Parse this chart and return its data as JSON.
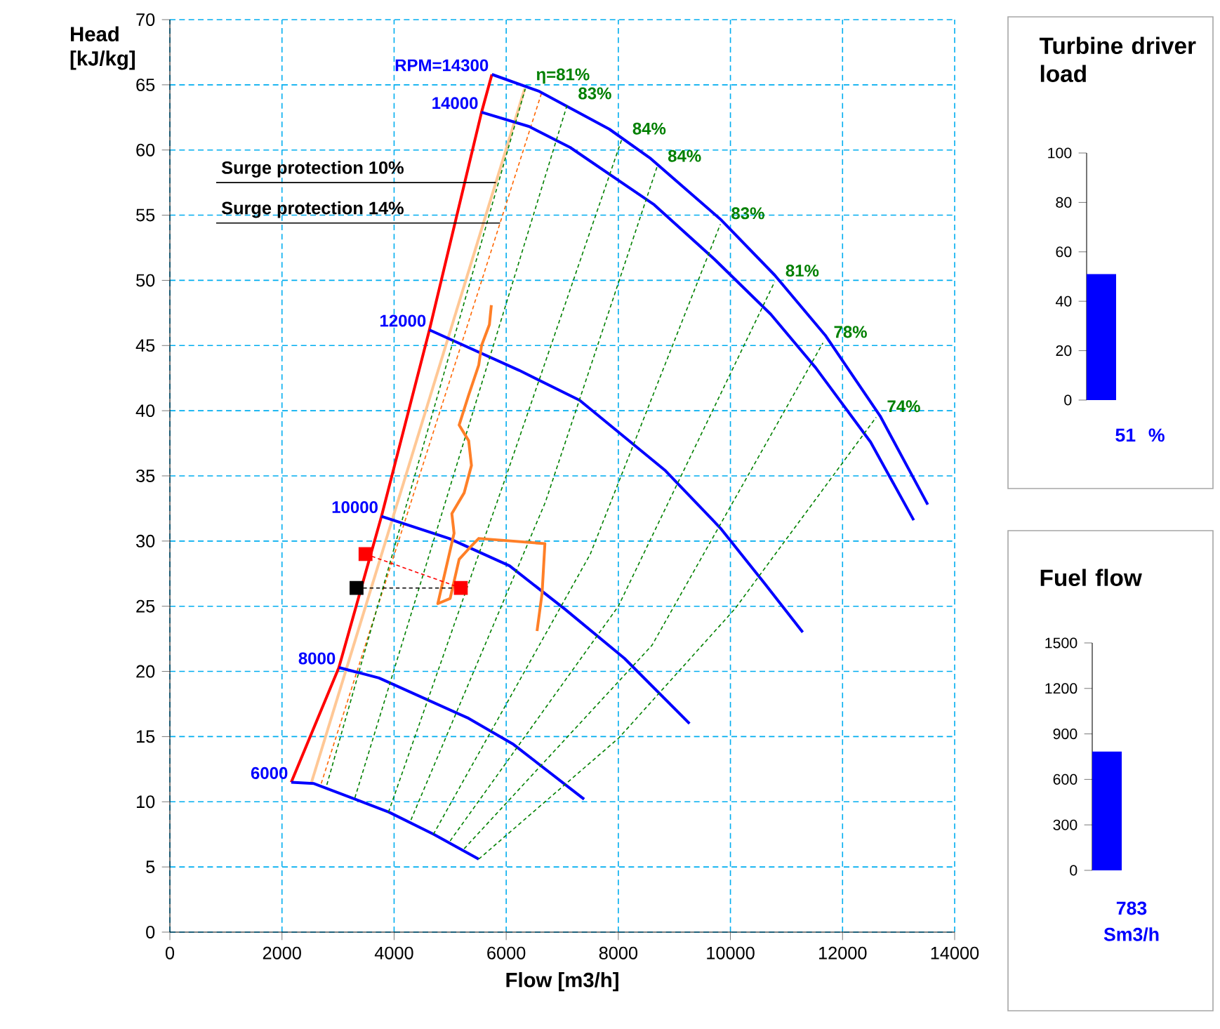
{
  "chart_data": [
    {
      "type": "line",
      "xlabel": "Flow [m3/h]",
      "ylabel": "Head [kJ/kg]",
      "xlim": [
        0,
        14000
      ],
      "ylim": [
        0,
        70
      ],
      "xticks": [
        0,
        2000,
        4000,
        6000,
        8000,
        10000,
        12000,
        14000
      ],
      "yticks": [
        0,
        5,
        10,
        15,
        20,
        25,
        30,
        35,
        40,
        45,
        50,
        55,
        60,
        65,
        70
      ],
      "grid": true,
      "series": [
        {
          "color": "#ff0000",
          "line_style": "solid",
          "x": [
            2165,
            3015,
            3775,
            4630,
            5560,
            5745
          ],
          "values": [
            11.5,
            20.3,
            31.9,
            46.2,
            62.9,
            65.8
          ]
        },
        {
          "color": "#ffc896",
          "line_style": "solid",
          "x": [
            2520,
            6330
          ],
          "values": [
            11.4,
            64.7
          ]
        },
        {
          "color": "#ff6600",
          "line_style": "dashed",
          "x": [
            2700,
            6640
          ],
          "values": [
            11.4,
            64.5
          ]
        },
        {
          "name": "RPM=14300",
          "color": "#0000ff",
          "line_style": "solid",
          "x": [
            5745,
            6590,
            7840,
            8560,
            9820,
            10790,
            11690,
            12670,
            13520
          ],
          "values": [
            65.8,
            64.5,
            61.6,
            59.4,
            54.7,
            50.4,
            45.8,
            39.6,
            32.8
          ]
        },
        {
          "name": "14000",
          "color": "#0000ff",
          "line_style": "solid",
          "x": [
            5560,
            6410,
            7140,
            8640,
            9720,
            10720,
            11520,
            12500,
            13270
          ],
          "values": [
            62.9,
            61.8,
            60.2,
            55.8,
            51.6,
            47.4,
            43.3,
            37.6,
            31.6
          ]
        },
        {
          "name": "12000",
          "color": "#0000ff",
          "line_style": "solid",
          "x": [
            4630,
            6230,
            7310,
            8840,
            9820,
            10620,
            11290
          ],
          "values": [
            46.2,
            43.1,
            40.8,
            35.4,
            31.0,
            26.7,
            23.0
          ]
        },
        {
          "name": "10000",
          "color": "#0000ff",
          "line_style": "solid",
          "x": [
            3775,
            4980,
            6060,
            7040,
            8110,
            9270
          ],
          "values": [
            31.9,
            30.2,
            28.1,
            24.8,
            21.0,
            16.0
          ]
        },
        {
          "name": "8000",
          "color": "#0000ff",
          "line_style": "solid",
          "x": [
            3015,
            3730,
            5330,
            6130,
            7390
          ],
          "values": [
            20.3,
            19.5,
            16.4,
            14.4,
            10.2
          ]
        },
        {
          "name": "6000",
          "color": "#0000ff",
          "line_style": "solid",
          "x": [
            2165,
            2570,
            3910,
            4710,
            5510
          ],
          "values": [
            11.5,
            11.4,
            9.2,
            7.5,
            5.6
          ]
        },
        {
          "name": "η=81%",
          "color": "#008000",
          "line_style": "dashed",
          "x": [
            2800,
            4500,
            6340
          ],
          "values": [
            11.3,
            37,
            64.7
          ]
        },
        {
          "name": "83%",
          "color": "#008000",
          "line_style": "dashed",
          "x": [
            3300,
            5200,
            7090
          ],
          "values": [
            10.3,
            37,
            63.5
          ]
        },
        {
          "name": "84%",
          "color": "#008000",
          "line_style": "dashed",
          "x": [
            3900,
            6000,
            8060
          ],
          "values": [
            9.2,
            35,
            60.8
          ]
        },
        {
          "name": "84%",
          "color": "#008000",
          "line_style": "dashed",
          "x": [
            4300,
            6700,
            8690
          ],
          "values": [
            8.6,
            33,
            58.7
          ]
        },
        {
          "name": "83%",
          "color": "#008000",
          "line_style": "dashed",
          "x": [
            4700,
            7500,
            9820
          ],
          "values": [
            7.5,
            29,
            54.3
          ]
        },
        {
          "name": "81%",
          "color": "#008000",
          "line_style": "dashed",
          "x": [
            5000,
            8000,
            10790
          ],
          "values": [
            7.0,
            25,
            49.9
          ]
        },
        {
          "name": "78%",
          "color": "#008000",
          "line_style": "dashed",
          "x": [
            5250,
            8600,
            11650
          ],
          "values": [
            6.4,
            22,
            45.2
          ]
        },
        {
          "name": "74%",
          "color": "#008000",
          "line_style": "dashed",
          "x": [
            5510,
            8010,
            10080,
            12600
          ],
          "values": [
            5.6,
            14.9,
            24.8,
            39.5
          ]
        },
        {
          "color": "#ff7f27",
          "line_style": "solid",
          "x": [
            5735,
            5700,
            5560,
            5510,
            5330,
            5160,
            5330,
            5380,
            5250,
            5030,
            5070,
            4780,
            5000,
            5160,
            5330,
            5510,
            6690,
            6640,
            6550
          ],
          "values": [
            48.1,
            46.6,
            45.0,
            43.5,
            41.2,
            38.9,
            37.7,
            35.8,
            33.7,
            32.1,
            30.6,
            25.2,
            25.6,
            28.6,
            29.4,
            30.2,
            29.8,
            26.0,
            23.1
          ]
        },
        {
          "color": "#ff0000",
          "line_style": "dashed",
          "x": [
            3490,
            5190
          ],
          "values": [
            29.0,
            26.4
          ]
        },
        {
          "color": "#000000",
          "line_style": "dashed",
          "x": [
            3330,
            5190
          ],
          "values": [
            26.4,
            26.4
          ]
        },
        {
          "type": "scatter",
          "marker": "square",
          "color": "#ff0000",
          "x": [
            3490,
            5190
          ],
          "values": [
            29.0,
            26.4
          ]
        },
        {
          "type": "scatter",
          "marker": "square",
          "color": "#000000",
          "x": [
            3330
          ],
          "values": [
            26.4
          ]
        }
      ],
      "annotations": [
        {
          "text": "Surge protection 10%",
          "x": 5815,
          "y": 57.5
        },
        {
          "text": "Surge protection 14%",
          "x": 5891,
          "y": 54.4
        }
      ]
    },
    {
      "type": "bar",
      "title": "Turbine driver load",
      "categories": [
        null
      ],
      "values": [
        51
      ],
      "color": "#0000ff",
      "ylim": [
        0,
        100
      ],
      "yticks": [
        0,
        20,
        40,
        60,
        80,
        100
      ],
      "value_labels": [
        "51"
      ],
      "annotations": [
        "%"
      ]
    },
    {
      "type": "bar",
      "title": "Fuel flow",
      "categories": [
        null
      ],
      "values": [
        783
      ],
      "color": "#0000ff",
      "ylim": [
        0,
        1500
      ],
      "yticks": [
        0,
        300,
        600,
        900,
        1200,
        1500
      ],
      "value_labels": [
        "783"
      ],
      "annotations": [
        "Sm3/h"
      ]
    }
  ]
}
